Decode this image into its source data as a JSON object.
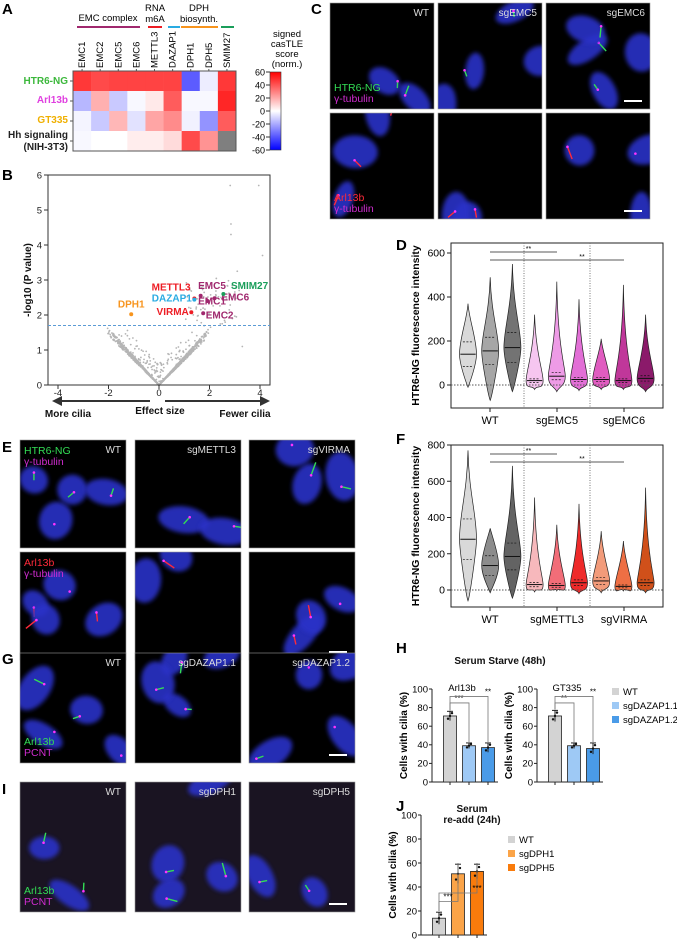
{
  "panel_letters": {
    "A": "A",
    "B": "B",
    "C": "C",
    "D": "D",
    "E": "E",
    "F": "F",
    "G": "G",
    "H": "H",
    "I": "I",
    "J": "J"
  },
  "colors": {
    "red": "#ff1a1a",
    "blue": "#1a1aff",
    "green": "#22b24c",
    "magenta": "#e23ce0",
    "orange": "#f4a000",
    "emc": "#a0286e",
    "dazap": "#29abe2",
    "dph": "#f7941d",
    "smim": "#1a9e5a",
    "gray": "#808080"
  },
  "panelA": {
    "groups": [
      {
        "label": "EMC complex",
        "color": "#a0286e"
      },
      {
        "label1": "RNA",
        "label2": "m6A",
        "color": "#ed1c24"
      },
      {
        "label": "",
        "color": "#29abe2"
      },
      {
        "label1": "DPH",
        "label2": "biosynth.",
        "color": "#f7941d"
      },
      {
        "label": "",
        "color": "#1a9e5a"
      }
    ],
    "columns": [
      "EMC1",
      "EMC2",
      "EMC5",
      "EMC6",
      "METTL3",
      "DAZAP1",
      "DPH1",
      "DPH5",
      "SMIM27"
    ],
    "rows": [
      {
        "label": "HTR6-NG",
        "color": "#3cb83c"
      },
      {
        "label": "Arl13b",
        "color": "#e040e0"
      },
      {
        "label": "GT335",
        "color": "#f0b000"
      },
      {
        "label1": "Hh signaling",
        "label2": "(NIH-3T3)",
        "color": "#222"
      }
    ],
    "values": [
      [
        55,
        50,
        52,
        52,
        52,
        52,
        -45,
        -5,
        55
      ],
      [
        -20,
        22,
        -15,
        -2,
        6,
        45,
        -2,
        -2,
        60
      ],
      [
        -3,
        -15,
        20,
        -8,
        25,
        32,
        -4,
        -30,
        45
      ],
      [
        -2,
        0,
        0,
        5,
        5,
        10,
        50,
        30,
        null
      ]
    ],
    "colorbar": {
      "title1": "signed",
      "title2": "casTLE",
      "title3": "score",
      "title4": "(norm.)",
      "ticks": [
        60,
        40,
        20,
        0,
        -20,
        -40,
        -60
      ]
    }
  },
  "chart_data": [
    {
      "type": "scatter",
      "panel": "B",
      "ylabel": "-log10 (P value)",
      "xlabel": "Effect size",
      "xlim": [
        -4.4,
        4.4
      ],
      "ylim": [
        0,
        6
      ],
      "xticks": [
        -4,
        -2,
        0,
        2,
        4
      ],
      "yticks": [
        0,
        1,
        2,
        3,
        4,
        5,
        6
      ],
      "threshold": 1.7,
      "arrow_left": "More cilia",
      "arrow_right": "Fewer cilia",
      "highlighted": [
        {
          "label": "DPH1",
          "x": -1.1,
          "y": 2.02,
          "color": "#f7941d"
        },
        {
          "label": "METTL3",
          "x": 1.4,
          "y": 2.47,
          "color": "#ed1c24"
        },
        {
          "label": "DAZAP1",
          "x": 1.4,
          "y": 2.44,
          "color": "#29abe2"
        },
        {
          "label": "VIRMA",
          "x": 1.28,
          "y": 2.08,
          "color": "#ed1c24"
        },
        {
          "label": "EMC5",
          "x": 1.65,
          "y": 2.55,
          "color": "#a0286e"
        },
        {
          "label": "EMC1",
          "x": 1.92,
          "y": 2.4,
          "color": "#a0286e"
        },
        {
          "label": "EMC2",
          "x": 1.75,
          "y": 2.05,
          "color": "#a0286e"
        },
        {
          "label": "EMC6",
          "x": 2.2,
          "y": 2.48,
          "color": "#a0286e"
        },
        {
          "label": "SMIM27",
          "x": 2.55,
          "y": 2.6,
          "color": "#1a9e5a"
        }
      ]
    },
    {
      "type": "violin",
      "panel": "D",
      "ylabel": "HTR6-NG fluorescence intensity",
      "ylim": [
        -100,
        650
      ],
      "yticks": [
        0,
        200,
        400,
        600
      ],
      "categories": [
        "WT",
        "sgEMC5",
        "sgEMC6"
      ],
      "significance": [
        "**",
        "**"
      ],
      "series": [
        {
          "group": "WT",
          "median": 140,
          "max": 370,
          "min": -10,
          "color": "#d9d9d9"
        },
        {
          "group": "WT",
          "median": 155,
          "max": 490,
          "min": -70,
          "color": "#a6a6a6"
        },
        {
          "group": "WT",
          "median": 170,
          "max": 550,
          "min": -30,
          "color": "#737373"
        },
        {
          "group": "sgEMC5",
          "median": 20,
          "max": 320,
          "min": -20,
          "color": "#f6c6f0"
        },
        {
          "group": "sgEMC5",
          "median": 40,
          "max": 470,
          "min": -30,
          "color": "#ee9be6"
        },
        {
          "group": "sgEMC5",
          "median": 25,
          "max": 390,
          "min": -25,
          "color": "#e26fd6"
        },
        {
          "group": "sgEMC6",
          "median": 25,
          "max": 210,
          "min": -20,
          "color": "#e05cc0"
        },
        {
          "group": "sgEMC6",
          "median": 20,
          "max": 455,
          "min": -20,
          "color": "#c0379a"
        },
        {
          "group": "sgEMC6",
          "median": 30,
          "max": 320,
          "min": -30,
          "color": "#8b1a6a"
        }
      ]
    },
    {
      "type": "violin",
      "panel": "F",
      "ylabel": "HTR6-NG fluorescence intensity",
      "ylim": [
        -100,
        800
      ],
      "yticks": [
        0,
        200,
        400,
        600,
        800
      ],
      "categories": [
        "WT",
        "sgMETTL3",
        "sgVIRMA"
      ],
      "significance": [
        "**",
        "**"
      ],
      "series": [
        {
          "group": "WT",
          "median": 280,
          "max": 770,
          "min": -60,
          "color": "#d9d9d9"
        },
        {
          "group": "WT",
          "median": 135,
          "max": 340,
          "min": -15,
          "color": "#8c8c8c"
        },
        {
          "group": "WT",
          "median": 185,
          "max": 685,
          "min": -45,
          "color": "#636363"
        },
        {
          "group": "sgMETTL3",
          "median": 30,
          "max": 510,
          "min": -10,
          "color": "#f7b8bc"
        },
        {
          "group": "sgMETTL3",
          "median": 25,
          "max": 360,
          "min": -5,
          "color": "#f26d78"
        },
        {
          "group": "sgMETTL3",
          "median": 40,
          "max": 475,
          "min": -20,
          "color": "#ee2a2a"
        },
        {
          "group": "sgVIRMA",
          "median": 50,
          "max": 325,
          "min": -15,
          "color": "#f29b7a"
        },
        {
          "group": "sgVIRMA",
          "median": 20,
          "max": 270,
          "min": -5,
          "color": "#ee6f44"
        },
        {
          "group": "sgVIRMA",
          "median": 40,
          "max": 565,
          "min": -15,
          "color": "#d0501a"
        }
      ]
    },
    {
      "type": "bar",
      "panel": "H",
      "title": "Serum Starve (48h)",
      "ylabel": "Cells with cilia (%)",
      "ylim": [
        0,
        100
      ],
      "yticks": [
        0,
        20,
        40,
        60,
        80,
        100
      ],
      "categories": [
        "WT",
        "sgDAZAP1.1",
        "sgDAZAP1.2"
      ],
      "colors": [
        "#d3d3d3",
        "#9ec9f5",
        "#4a9be8"
      ],
      "subplots": [
        {
          "title": "Arl13b",
          "values": [
            71,
            39,
            37
          ],
          "errors": [
            5,
            3,
            5
          ],
          "significance": [
            "***",
            "**"
          ]
        },
        {
          "title": "GT335",
          "values": [
            71,
            39,
            36
          ],
          "errors": [
            6,
            3,
            6
          ],
          "significance": [
            "**",
            "**"
          ]
        }
      ]
    },
    {
      "type": "bar",
      "panel": "J",
      "title1": "Serum",
      "title2": "re-add (24h)",
      "ylabel": "Cells with cilia (%)",
      "ylim": [
        0,
        100
      ],
      "yticks": [
        0,
        20,
        40,
        60,
        80,
        100
      ],
      "categories": [
        "WT",
        "sgDPH1",
        "sgDPH5"
      ],
      "colors": [
        "#d3d3d3",
        "#fba448",
        "#f97b0c"
      ],
      "values": [
        14,
        51,
        53
      ],
      "errors": [
        5,
        8,
        6
      ],
      "significance": [
        "***",
        "***"
      ]
    }
  ],
  "microscopy": {
    "C": {
      "cols": [
        "WT",
        "sgEMC5",
        "sgEMC6"
      ],
      "row1": {
        "ch1": "HTR6-NG",
        "ch2": "γ-tubulin"
      },
      "row2": {
        "ch1": "Arl13b",
        "ch2": "γ-tubulin"
      }
    },
    "E": {
      "cols": [
        "WT",
        "sgMETTL3",
        "sgVIRMA"
      ],
      "row1": {
        "ch1": "HTR6-NG",
        "ch2": "γ-tubulin"
      },
      "row2": {
        "ch1": "Arl13b",
        "ch2": "γ-tubulin"
      }
    },
    "G": {
      "cols": [
        "WT",
        "sgDAZAP1.1",
        "sgDAZAP1.2"
      ],
      "ch1": "Arl13b",
      "ch2": "PCNT"
    },
    "I": {
      "cols": [
        "WT",
        "sgDPH1",
        "sgDPH5"
      ],
      "ch1": "Arl13b",
      "ch2": "PCNT"
    }
  }
}
